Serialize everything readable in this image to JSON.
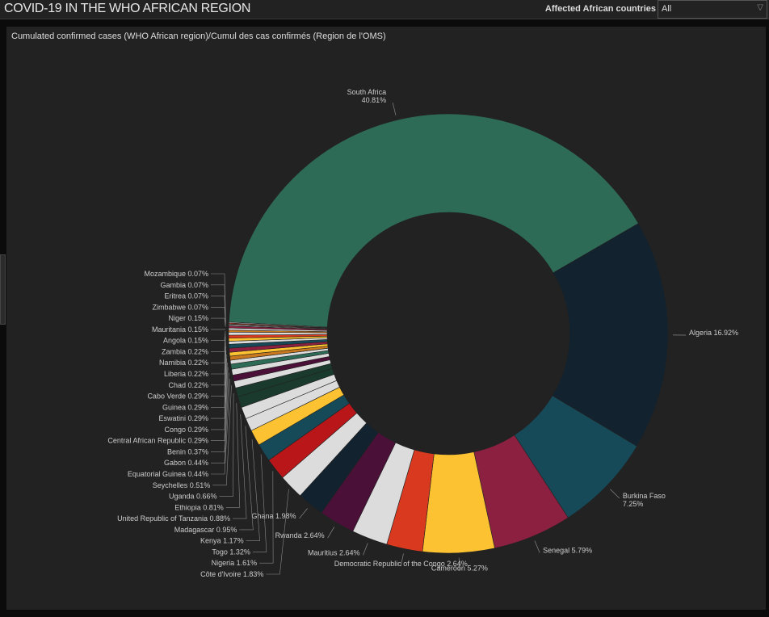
{
  "header": {
    "title": "COVID-19 IN THE WHO AFRICAN REGION",
    "filter_label": "Affected African countries",
    "filter_value": "All"
  },
  "chart_data": {
    "type": "pie",
    "title": "Cumulated confirmed cases (WHO African region)/Cumul des cas confirmés (Region de l'OMS)",
    "unit": "%",
    "slices": [
      {
        "label": "South Africa",
        "value": 40.81,
        "color": "#2e6b57"
      },
      {
        "label": "Algeria",
        "value": 16.92,
        "color": "#12222e"
      },
      {
        "label": "Burkina Faso",
        "value": 7.25,
        "color": "#164a58"
      },
      {
        "label": "Senegal",
        "value": 5.79,
        "color": "#8b2040"
      },
      {
        "label": "Cameroon",
        "value": 5.27,
        "color": "#fcc231"
      },
      {
        "label": "Democratic Republic of the Congo",
        "value": 2.64,
        "color": "#d9391e"
      },
      {
        "label": "Mauritius",
        "value": 2.64,
        "color": "#dcdcdc"
      },
      {
        "label": "Rwanda",
        "value": 2.64,
        "color": "#4a1038"
      },
      {
        "label": "Ghana",
        "value": 1.98,
        "color": "#12222e"
      },
      {
        "label": "Côte d'Ivoire",
        "value": 1.83,
        "color": "#dcdcdc"
      },
      {
        "label": "Nigeria",
        "value": 1.61,
        "color": "#b9161a"
      },
      {
        "label": "Togo",
        "value": 1.32,
        "color": "#164a58"
      },
      {
        "label": "Kenya",
        "value": 1.17,
        "color": "#fcc231"
      },
      {
        "label": "Madagascar",
        "value": 0.95,
        "color": "#dcdcdc"
      },
      {
        "label": "United Republic of Tanzania",
        "value": 0.88,
        "color": "#dcdcdc"
      },
      {
        "label": "Ethiopia",
        "value": 0.81,
        "color": "#1b3a2e"
      },
      {
        "label": "Uganda",
        "value": 0.66,
        "color": "#1b3a2e"
      },
      {
        "label": "Seychelles",
        "value": 0.51,
        "color": "#dcdcdc"
      },
      {
        "label": "Equatorial Guinea",
        "value": 0.44,
        "color": "#4a1038"
      },
      {
        "label": "Gabon",
        "value": 0.44,
        "color": "#dcdcdc"
      },
      {
        "label": "Benin",
        "value": 0.37,
        "color": "#2e6b57"
      },
      {
        "label": "Central African Republic",
        "value": 0.29,
        "color": "#dcdcdc"
      },
      {
        "label": "Congo",
        "value": 0.29,
        "color": "#c8781e"
      },
      {
        "label": "Eswatini",
        "value": 0.29,
        "color": "#fcc231"
      },
      {
        "label": "Guinea",
        "value": 0.29,
        "color": "#8b2040"
      },
      {
        "label": "Cabo Verde",
        "value": 0.29,
        "color": "#164a58"
      },
      {
        "label": "Chad",
        "value": 0.22,
        "color": "#dcdcdc"
      },
      {
        "label": "Liberia",
        "value": 0.22,
        "color": "#fcc231"
      },
      {
        "label": "Namibia",
        "value": 0.22,
        "color": "#d9391e"
      },
      {
        "label": "Zambia",
        "value": 0.22,
        "color": "#dcdcdc"
      },
      {
        "label": "Angola",
        "value": 0.15,
        "color": "#c8781e"
      },
      {
        "label": "Mauritania",
        "value": 0.15,
        "color": "#dcdcdc"
      },
      {
        "label": "Niger",
        "value": 0.15,
        "color": "#8b2040"
      },
      {
        "label": "Zimbabwe",
        "value": 0.07,
        "color": "#dcdcdc"
      },
      {
        "label": "Eritrea",
        "value": 0.07,
        "color": "#dcdcdc"
      },
      {
        "label": "Gambia",
        "value": 0.07,
        "color": "#d9391e"
      },
      {
        "label": "Mozambique",
        "value": 0.07,
        "color": "#dcdcdc"
      }
    ]
  }
}
